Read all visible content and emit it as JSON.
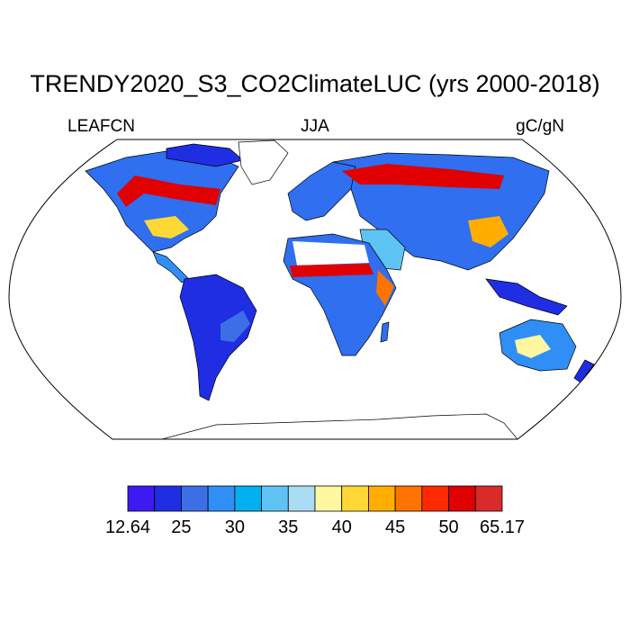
{
  "header": {
    "title": "TRENDY2020_S3_CO2ClimateLUC (yrs 2000-2018)",
    "left_label": "LEAFCN",
    "center_label": "JJA",
    "right_label": "gC/gN"
  },
  "map": {
    "projection": "Robinson",
    "variable": "LEAFCN",
    "units": "gC/gN",
    "season": "JJA"
  },
  "colorbar": {
    "colors": [
      "#3d1af2",
      "#1f2ee3",
      "#3c6fe6",
      "#2f8ff7",
      "#00b0f0",
      "#5ec3f3",
      "#aadcf5",
      "#fff8a0",
      "#ffd835",
      "#ffae00",
      "#ff7300",
      "#ff2a00",
      "#e00000",
      "#d92b2b"
    ],
    "tick_labels": [
      "12.64",
      "25",
      "30",
      "35",
      "40",
      "45",
      "50",
      "65.17"
    ]
  }
}
